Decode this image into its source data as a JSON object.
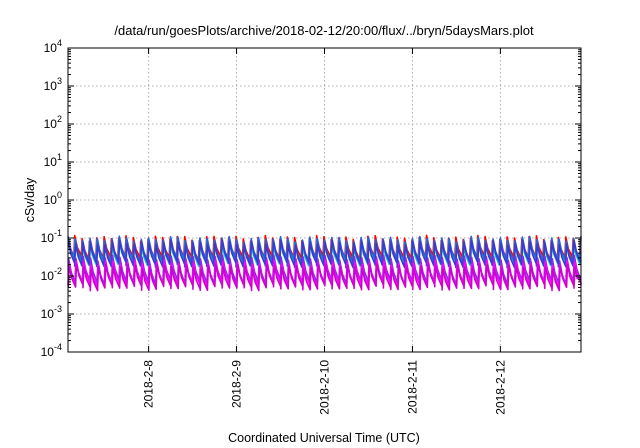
{
  "chart_data": {
    "type": "line",
    "title": "/data/run/goesPlots/archive/2018-02-12/20:00/flux/../bryn/5daysMars.plot",
    "xlabel": "Coordinated Universal Time (UTC)",
    "ylabel": "cSv/day",
    "x_range": [
      "2018-02-07T02:00",
      "2018-02-12T22:00"
    ],
    "y_range": [
      0.0001,
      10000
    ],
    "y_scale": "log",
    "grid": true,
    "x_ticks": [
      {
        "value": "2018-02-08T00:00",
        "label": "2018-2-8"
      },
      {
        "value": "2018-02-09T00:00",
        "label": "2018-2-9"
      },
      {
        "value": "2018-02-10T00:00",
        "label": "2018-2-10"
      },
      {
        "value": "2018-02-11T00:00",
        "label": "2018-2-11"
      },
      {
        "value": "2018-02-12T00:00",
        "label": "2018-2-12"
      }
    ],
    "y_ticks": [
      {
        "value": 0.0001,
        "base": "10",
        "exp": "-4"
      },
      {
        "value": 0.001,
        "base": "10",
        "exp": "-3"
      },
      {
        "value": 0.01,
        "base": "10",
        "exp": "-2"
      },
      {
        "value": 0.1,
        "base": "10",
        "exp": "-1"
      },
      {
        "value": 1,
        "base": "10",
        "exp": "0"
      },
      {
        "value": 10,
        "base": "10",
        "exp": "1"
      },
      {
        "value": 100,
        "base": "10",
        "exp": "2"
      },
      {
        "value": 1000,
        "base": "10",
        "exp": "3"
      },
      {
        "value": 10000,
        "base": "10",
        "exp": "4"
      }
    ],
    "series_pattern": {
      "description": "sawtooth dose-rate curves: rapid rise then slow decay, period about 2 hours",
      "period_hours": 2.0
    },
    "series": [
      {
        "color": "#ff0000",
        "peak": 0.1,
        "trough": 0.03
      },
      {
        "color": "#00c8c8",
        "peak": 0.085,
        "trough": 0.022
      },
      {
        "color": "#2c5fd8",
        "peak": 0.095,
        "trough": 0.026
      },
      {
        "color": "#3a3ad0",
        "peak": 0.075,
        "trough": 0.02
      },
      {
        "color": "#8a2be2",
        "peak": 0.03,
        "trough": 0.007
      },
      {
        "color": "#ff00ff",
        "peak": 0.022,
        "trough": 0.006
      },
      {
        "color": "#d000d0",
        "peak": 0.018,
        "trough": 0.005
      }
    ]
  }
}
